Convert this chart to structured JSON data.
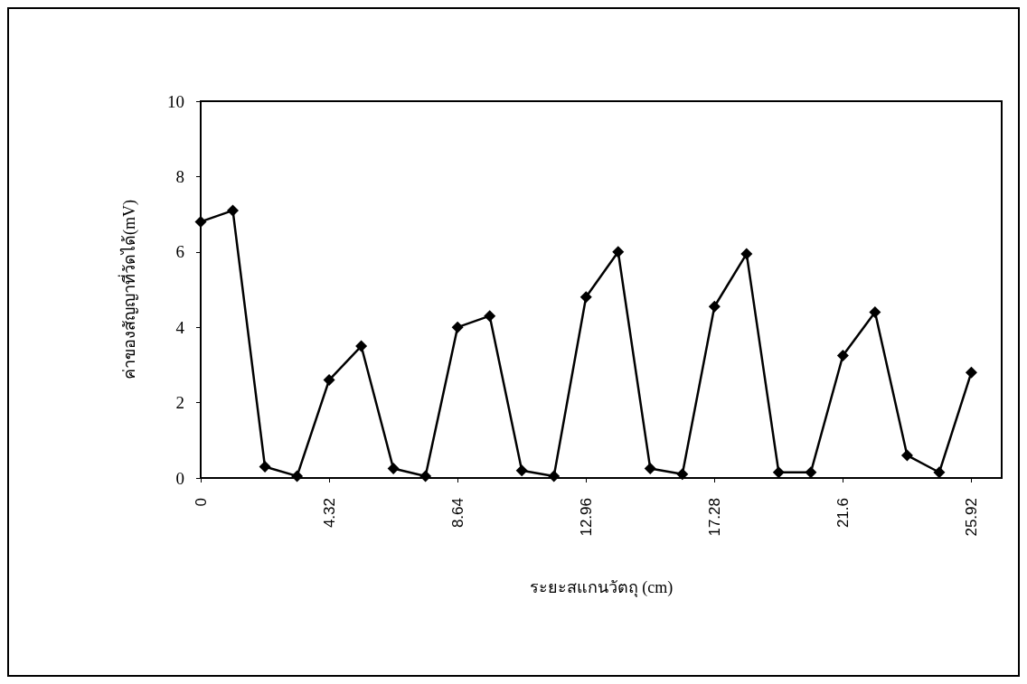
{
  "chart_data": {
    "type": "line",
    "xlabel": "ระยะสแกนวัตถุ (cm)",
    "ylabel": "ค่าของสัญญาที่วัดได้(mV)",
    "x": [
      0,
      1.08,
      2.16,
      3.24,
      4.32,
      5.4,
      6.48,
      7.56,
      8.64,
      9.72,
      10.8,
      11.88,
      12.96,
      14.04,
      15.12,
      16.2,
      17.28,
      18.36,
      19.44,
      20.52,
      21.6,
      22.68,
      23.76,
      24.84,
      25.92
    ],
    "series": [
      {
        "color": "#000000",
        "values": [
          6.8,
          7.1,
          0.3,
          0.05,
          2.6,
          3.5,
          0.25,
          0.05,
          4.0,
          4.3,
          0.2,
          0.05,
          4.8,
          6.0,
          0.25,
          0.1,
          4.55,
          5.95,
          0.15,
          0.15,
          3.25,
          4.4,
          0.6,
          0.15,
          2.8
        ]
      }
    ],
    "xlim": [
      0,
      26.94
    ],
    "xticks": [
      0,
      4.32,
      8.64,
      12.96,
      17.28,
      21.6,
      25.92
    ],
    "ylim": [
      0,
      10
    ],
    "yticks": [
      0,
      2,
      4,
      6,
      8,
      10
    ],
    "grid": false,
    "marker": "diamond",
    "line_style": "solid"
  }
}
